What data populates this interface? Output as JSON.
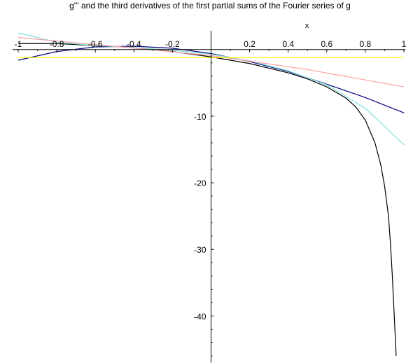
{
  "chart_data": {
    "type": "line",
    "title": "g''' and the third derivatives of the first partial sums of the Fourier series of g",
    "xlabel": "x",
    "ylabel": "",
    "xlim": [
      -1,
      1
    ],
    "ylim": [
      -47,
      2.5
    ],
    "grid": false,
    "x_ticks": [
      -1,
      -0.8,
      -0.6,
      -0.4,
      -0.2,
      0.2,
      0.4,
      0.6,
      0.8,
      1
    ],
    "x_tick_labels": [
      "-1",
      "-0.8",
      "-0.6",
      "-0.4",
      "-0.2",
      "0.2",
      "0.4",
      "0.6",
      "0.8",
      "1"
    ],
    "y_ticks": [
      -10,
      -20,
      -30,
      -40
    ],
    "y_tick_labels": [
      "-10",
      "-20",
      "-30",
      "-40"
    ],
    "series": [
      {
        "color": "#000000",
        "x": [
          -1,
          -0.8,
          -0.6,
          -0.4,
          -0.2,
          0,
          0.2,
          0.4,
          0.5,
          0.6,
          0.7,
          0.75,
          0.8,
          0.85,
          0.88,
          0.9,
          0.92,
          0.93,
          0.94,
          0.95,
          0.96
        ],
        "y": [
          0.9,
          0.9,
          0.6,
          0.3,
          -0.3,
          -1.1,
          -2.1,
          -3.5,
          -4.4,
          -5.6,
          -7.3,
          -8.6,
          -10.6,
          -14.0,
          -17.3,
          -20.5,
          -25.0,
          -29.0,
          -34.0,
          -40.0,
          -46.0
        ]
      },
      {
        "color": "#00007f",
        "x": [
          -1,
          -0.8,
          -0.6,
          -0.4,
          -0.2,
          0,
          0.2,
          0.4,
          0.6,
          0.8,
          1
        ],
        "y": [
          -1.6,
          -0.3,
          0.4,
          0.5,
          0.2,
          -0.6,
          -1.8,
          -3.3,
          -5.2,
          -7.2,
          -9.5
        ]
      },
      {
        "color": "#7fdfdf",
        "x": [
          -1,
          -0.8,
          -0.6,
          -0.4,
          -0.2,
          0,
          0.2,
          0.4,
          0.6,
          0.8,
          1
        ],
        "y": [
          2.5,
          1.1,
          0.6,
          0.3,
          -0.1,
          -0.7,
          -1.7,
          -3.2,
          -5.3,
          -8.8,
          -14.3
        ]
      },
      {
        "color": "#ff9f9f",
        "x": [
          -1,
          -0.5,
          0,
          0.5,
          1
        ],
        "y": [
          1.8,
          0.5,
          -0.9,
          -3.0,
          -5.6
        ]
      },
      {
        "color": "#ffff00",
        "x": [
          -1,
          1
        ],
        "y": [
          -1.2,
          -1.2
        ]
      }
    ]
  }
}
